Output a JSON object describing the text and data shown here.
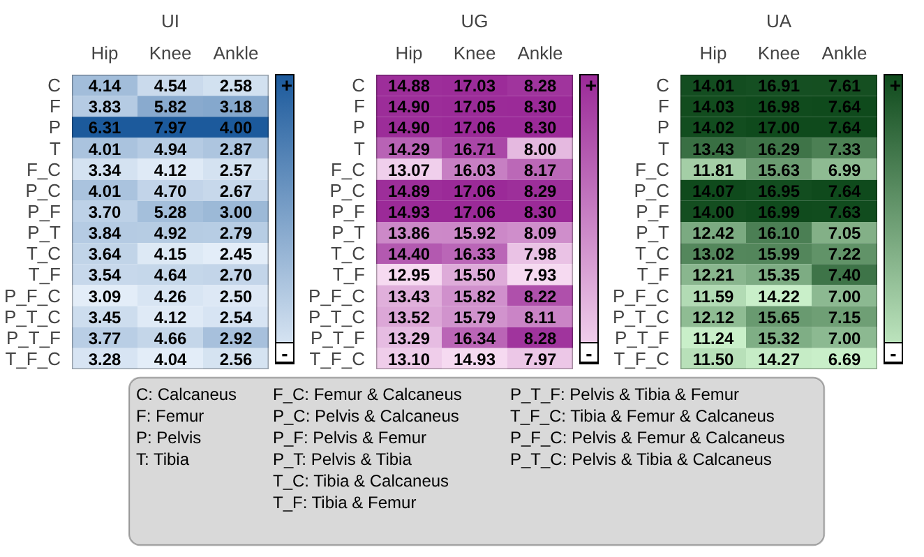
{
  "chart_data": [
    {
      "type": "heatmap",
      "title": "UI",
      "categories": [
        "Hip",
        "Knee",
        "Ankle"
      ],
      "y_categories": [
        "C",
        "F",
        "P",
        "T",
        "F_C",
        "P_C",
        "P_F",
        "P_T",
        "T_C",
        "T_F",
        "P_F_C",
        "P_T_C",
        "P_T_F",
        "T_F_C"
      ],
      "colors": [
        "#e3edf8",
        "#1c5a9c"
      ],
      "data_labels": true,
      "annotations": [
        "+",
        "-"
      ],
      "cell_labels": [
        [
          "4.14",
          "4.54",
          "2.58"
        ],
        [
          "3.83",
          "5.82",
          "3.18"
        ],
        [
          "6.31",
          "7.97",
          "4.00"
        ],
        [
          "4.01",
          "4.94",
          "2.87"
        ],
        [
          "3.34",
          "4.12",
          "2.57"
        ],
        [
          "4.01",
          "4.70",
          "2.67"
        ],
        [
          "3.70",
          "5.28",
          "3.00"
        ],
        [
          "3.84",
          "4.92",
          "2.79"
        ],
        [
          "3.64",
          "4.15",
          "2.45"
        ],
        [
          "3.54",
          "4.64",
          "2.70"
        ],
        [
          "3.09",
          "4.26",
          "2.50"
        ],
        [
          "3.45",
          "4.12",
          "2.54"
        ],
        [
          "3.77",
          "4.66",
          "2.92"
        ],
        [
          "3.28",
          "4.04",
          "2.56"
        ]
      ],
      "cells": [
        [
          4.14,
          4.54,
          2.58
        ],
        [
          3.83,
          5.82,
          3.18
        ],
        [
          6.31,
          7.97,
          4.0
        ],
        [
          4.01,
          4.94,
          2.87
        ],
        [
          3.34,
          4.12,
          2.57
        ],
        [
          4.01,
          4.7,
          2.67
        ],
        [
          3.7,
          5.28,
          3.0
        ],
        [
          3.84,
          4.92,
          2.79
        ],
        [
          3.64,
          4.15,
          2.45
        ],
        [
          3.54,
          4.64,
          2.7
        ],
        [
          3.09,
          4.26,
          2.5
        ],
        [
          3.45,
          4.12,
          2.54
        ],
        [
          3.77,
          4.66,
          2.92
        ],
        [
          3.28,
          4.04,
          2.56
        ]
      ]
    },
    {
      "type": "heatmap",
      "title": "UG",
      "categories": [
        "Hip",
        "Knee",
        "Ankle"
      ],
      "y_categories": [
        "C",
        "F",
        "P",
        "T",
        "F_C",
        "P_C",
        "P_F",
        "P_T",
        "T_C",
        "T_F",
        "P_F_C",
        "P_T_C",
        "P_T_F",
        "T_F_C"
      ],
      "colors": [
        "#f6daf1",
        "#9b2a98"
      ],
      "data_labels": true,
      "annotations": [
        "+",
        "-"
      ],
      "cell_labels": [
        [
          "14.88",
          "17.03",
          "8.28"
        ],
        [
          "14.90",
          "17.05",
          "8.30"
        ],
        [
          "14.90",
          "17.06",
          "8.30"
        ],
        [
          "14.29",
          "16.71",
          "8.00"
        ],
        [
          "13.07",
          "16.03",
          "8.17"
        ],
        [
          "14.89",
          "17.06",
          "8.29"
        ],
        [
          "14.93",
          "17.06",
          "8.30"
        ],
        [
          "13.86",
          "15.92",
          "8.09"
        ],
        [
          "14.40",
          "16.33",
          "7.98"
        ],
        [
          "12.95",
          "15.50",
          "7.93"
        ],
        [
          "13.43",
          "15.82",
          "8.22"
        ],
        [
          "13.52",
          "15.79",
          "8.11"
        ],
        [
          "13.29",
          "16.34",
          "8.28"
        ],
        [
          "13.10",
          "14.93",
          "7.97"
        ]
      ],
      "cells": [
        [
          14.88,
          17.03,
          8.28
        ],
        [
          14.9,
          17.05,
          8.3
        ],
        [
          14.9,
          17.06,
          8.3
        ],
        [
          14.29,
          16.71,
          8.0
        ],
        [
          13.07,
          16.03,
          8.17
        ],
        [
          14.89,
          17.06,
          8.29
        ],
        [
          14.93,
          17.06,
          8.3
        ],
        [
          13.86,
          15.92,
          8.09
        ],
        [
          14.4,
          16.33,
          7.98
        ],
        [
          12.95,
          15.5,
          7.93
        ],
        [
          13.43,
          15.82,
          8.22
        ],
        [
          13.52,
          15.79,
          8.11
        ],
        [
          13.29,
          16.34,
          8.28
        ],
        [
          13.1,
          14.93,
          7.97
        ]
      ]
    },
    {
      "type": "heatmap",
      "title": "UA",
      "categories": [
        "Hip",
        "Knee",
        "Ankle"
      ],
      "y_categories": [
        "C",
        "F",
        "P",
        "T",
        "F_C",
        "P_C",
        "P_F",
        "P_T",
        "T_C",
        "T_F",
        "P_F_C",
        "P_T_C",
        "P_T_F",
        "T_F_C"
      ],
      "colors": [
        "#c9efc9",
        "#0f4a1c"
      ],
      "data_labels": true,
      "annotations": [
        "+",
        "-"
      ],
      "cell_labels": [
        [
          "14.01",
          "16.91",
          "7.61"
        ],
        [
          "14.03",
          "16.98",
          "7.64"
        ],
        [
          "14.02",
          "17.00",
          "7.64"
        ],
        [
          "13.43",
          "16.29",
          "7.33"
        ],
        [
          "11.81",
          "15.63",
          "6.99"
        ],
        [
          "14.07",
          "16.95",
          "7.64"
        ],
        [
          "14.00",
          "16.99",
          "7.63"
        ],
        [
          "12.42",
          "16.10",
          "7.05"
        ],
        [
          "13.02",
          "15.99",
          "7.22"
        ],
        [
          "12.21",
          "15.35",
          "7.40"
        ],
        [
          "11.59",
          "14.22",
          "7.00"
        ],
        [
          "12.12",
          "15.65",
          "7.15"
        ],
        [
          "11.24",
          "15.32",
          "7.00"
        ],
        [
          "11.50",
          "14.27",
          "6.69"
        ]
      ],
      "cells": [
        [
          14.01,
          16.91,
          7.61
        ],
        [
          14.03,
          16.98,
          7.64
        ],
        [
          14.02,
          17.0,
          7.64
        ],
        [
          13.43,
          16.29,
          7.33
        ],
        [
          11.81,
          15.63,
          6.99
        ],
        [
          14.07,
          16.95,
          7.64
        ],
        [
          14.0,
          16.99,
          7.63
        ],
        [
          12.42,
          16.1,
          7.05
        ],
        [
          13.02,
          15.99,
          7.22
        ],
        [
          12.21,
          15.35,
          7.4
        ],
        [
          11.59,
          14.22,
          7.0
        ],
        [
          12.12,
          15.65,
          7.15
        ],
        [
          11.24,
          15.32,
          7.0
        ],
        [
          11.5,
          14.27,
          6.69
        ]
      ]
    },
    {
      "type": "other",
      "annotations": [
        "C: Calcaneus",
        "F: Femur",
        "P: Pelvis",
        "T: Tibia",
        "F_C: Femur & Calcaneus",
        "P_C: Pelvis & Calcaneus",
        "P_F: Pelvis & Femur",
        "P_T: Pelvis & Tibia",
        "T_C: Tibia & Calcaneus",
        "T_F: Tibia & Femur",
        "P_T_F: Pelvis & Tibia & Femur",
        "T_F_C: Tibia & Femur & Calcaneus",
        "P_F_C: Pelvis & Femur & Calcaneus",
        "P_T_C: Pelvis & Tibia & Calcaneus"
      ]
    }
  ]
}
